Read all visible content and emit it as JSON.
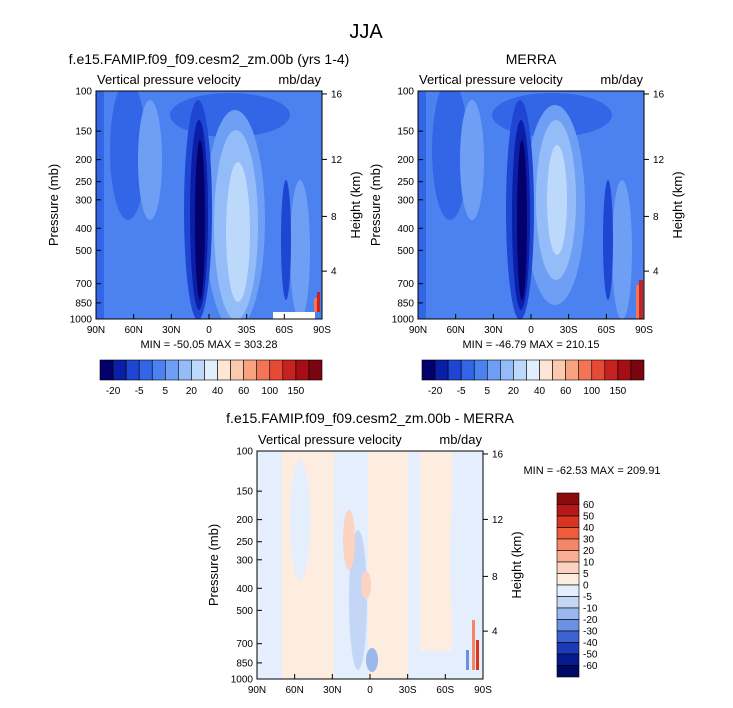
{
  "page_title": "JJA",
  "chart_data": [
    {
      "type": "heatmap",
      "title": "f.e15.FAMIP.f09_f09.cesm2_zm.00b (yrs 1-4)",
      "subtitle_left": "Vertical pressure velocity",
      "subtitle_right": "mb/day",
      "xlabel": "",
      "ylabel": "Pressure (mb)",
      "ylabel_right": "Height (km)",
      "x_ticks": [
        "90N",
        "60N",
        "30N",
        "0",
        "30S",
        "60S",
        "90S"
      ],
      "y_ticks": [
        "100",
        "150",
        "200",
        "250",
        "300",
        "400",
        "500",
        "700",
        "850",
        "1000"
      ],
      "y_right_ticks": [
        "16",
        "12",
        "8",
        "4"
      ],
      "stats": "MIN = -50.05  MAX = 303.28",
      "colorbar_labels": [
        "-20",
        "-5",
        "5",
        "20",
        "40",
        "60",
        "100",
        "150"
      ]
    },
    {
      "type": "heatmap",
      "title": "MERRA",
      "subtitle_left": "Vertical pressure velocity",
      "subtitle_right": "mb/day",
      "xlabel": "",
      "ylabel": "Pressure (mb)",
      "ylabel_right": "Height (km)",
      "x_ticks": [
        "90N",
        "60N",
        "30N",
        "0",
        "30S",
        "60S",
        "90S"
      ],
      "y_ticks": [
        "100",
        "150",
        "200",
        "250",
        "300",
        "400",
        "500",
        "700",
        "850",
        "1000"
      ],
      "y_right_ticks": [
        "16",
        "12",
        "8",
        "4"
      ],
      "stats": "MIN = -46.79  MAX = 210.15",
      "colorbar_labels": [
        "-20",
        "-5",
        "5",
        "20",
        "40",
        "60",
        "100",
        "150"
      ]
    },
    {
      "type": "heatmap",
      "title": "f.e15.FAMIP.f09_f09.cesm2_zm.00b - MERRA",
      "subtitle_left": "Vertical pressure velocity",
      "subtitle_right": "mb/day",
      "xlabel": "",
      "ylabel": "Pressure (mb)",
      "ylabel_right": "Height (km)",
      "x_ticks": [
        "90N",
        "60N",
        "30N",
        "0",
        "30S",
        "60S",
        "90S"
      ],
      "y_ticks": [
        "100",
        "150",
        "200",
        "250",
        "300",
        "400",
        "500",
        "700",
        "850",
        "1000"
      ],
      "y_right_ticks": [
        "16",
        "12",
        "8",
        "4"
      ],
      "stats": "MIN = -62.53  MAX = 209.91",
      "colorbar_labels": [
        "60",
        "50",
        "40",
        "30",
        "20",
        "10",
        "5",
        "0",
        "-5",
        "-10",
        "-20",
        "-30",
        "-40",
        "-50",
        "-60"
      ]
    }
  ],
  "colors": {
    "main_scale": [
      "#03006b",
      "#0a1ea8",
      "#1e46d2",
      "#3366e6",
      "#4b82f0",
      "#6e9ff5",
      "#93bcf8",
      "#bcd8fb",
      "#e0eefd",
      "#fde6d6",
      "#fcc8ae",
      "#f9a27f",
      "#f37556",
      "#e44a34",
      "#c6221f",
      "#a40e14",
      "#7a0510"
    ],
    "diff_scale": [
      "#8b0a0a",
      "#b81818",
      "#d83420",
      "#ef5c3c",
      "#f6866a",
      "#faaf95",
      "#fcd3c0",
      "#fdece0",
      "#e4eefc",
      "#c3d6f6",
      "#9ab8ee",
      "#6c90e2",
      "#3c62d2",
      "#1a3ab8",
      "#061a8e",
      "#000a66"
    ]
  }
}
